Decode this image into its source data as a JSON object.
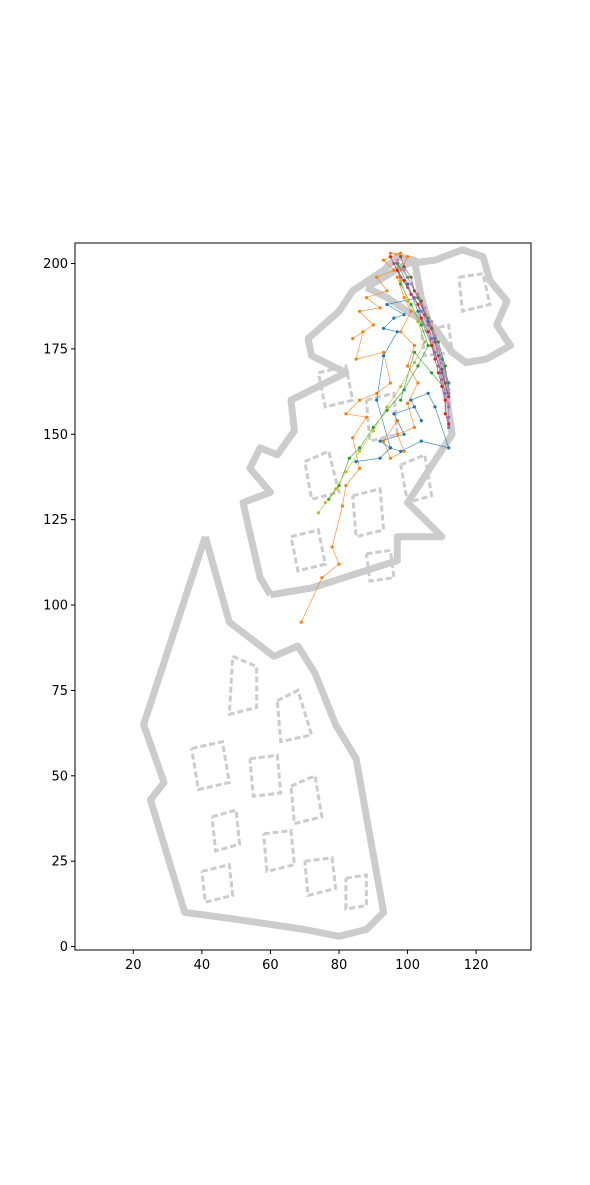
{
  "chart_data": {
    "type": "scatter",
    "title": "",
    "xlabel": "",
    "ylabel": "",
    "xlim": [
      3,
      136
    ],
    "ylim": [
      -1,
      206
    ],
    "grid": false,
    "legend": "none",
    "x_ticks": [
      20,
      40,
      60,
      80,
      100,
      120
    ],
    "x_tick_labels": [
      "20",
      "40",
      "60",
      "80",
      "100",
      "120"
    ],
    "y_ticks": [
      0,
      25,
      50,
      75,
      100,
      125,
      150,
      175,
      200
    ],
    "y_tick_labels": [
      "0",
      "25",
      "50",
      "75",
      "100",
      "125",
      "150",
      "175",
      "200"
    ],
    "map_color": "#cccccc",
    "map_walls": [
      [
        [
          41,
          120
        ],
        [
          23,
          65
        ],
        [
          29,
          48
        ],
        [
          25,
          43
        ],
        [
          35,
          10
        ],
        [
          50,
          8
        ],
        [
          70,
          5
        ],
        [
          80,
          3
        ],
        [
          88,
          5
        ],
        [
          93,
          10
        ],
        [
          85,
          55
        ],
        [
          79,
          65
        ],
        [
          73,
          80
        ],
        [
          68,
          88
        ],
        [
          61,
          85
        ],
        [
          48,
          95
        ],
        [
          41,
          120
        ]
      ],
      [
        [
          60,
          103
        ],
        [
          57,
          108
        ],
        [
          52,
          130
        ],
        [
          60,
          133
        ],
        [
          54,
          140
        ],
        [
          57,
          146
        ],
        [
          62,
          144
        ],
        [
          67,
          151
        ],
        [
          66,
          160
        ],
        [
          76,
          165
        ],
        [
          82,
          168
        ],
        [
          72,
          173
        ],
        [
          71,
          178
        ],
        [
          80,
          186
        ],
        [
          84,
          192
        ],
        [
          93,
          198
        ],
        [
          97,
          202
        ],
        [
          102,
          201
        ],
        [
          104,
          190
        ],
        [
          110,
          170
        ],
        [
          113,
          150
        ],
        [
          100,
          130
        ],
        [
          110,
          120
        ],
        [
          97,
          120
        ],
        [
          97,
          113
        ],
        [
          72,
          105
        ],
        [
          60,
          103
        ]
      ],
      [
        [
          88,
          193
        ],
        [
          100,
          200
        ],
        [
          108,
          201
        ],
        [
          116,
          204
        ],
        [
          122,
          202
        ],
        [
          124,
          195
        ],
        [
          129,
          189
        ],
        [
          126,
          182
        ],
        [
          130,
          176
        ],
        [
          123,
          172
        ],
        [
          117,
          171
        ],
        [
          113,
          174
        ],
        [
          108,
          181
        ],
        [
          100,
          186
        ],
        [
          94,
          190
        ],
        [
          88,
          193
        ]
      ]
    ],
    "map_interior": [
      [
        [
          49,
          85
        ],
        [
          56,
          82
        ],
        [
          56,
          70
        ],
        [
          48,
          68
        ],
        [
          49,
          85
        ]
      ],
      [
        [
          62,
          72
        ],
        [
          68,
          75
        ],
        [
          72,
          62
        ],
        [
          63,
          60
        ],
        [
          62,
          72
        ]
      ],
      [
        [
          37,
          58
        ],
        [
          46,
          60
        ],
        [
          48,
          48
        ],
        [
          39,
          46
        ],
        [
          37,
          58
        ]
      ],
      [
        [
          54,
          55
        ],
        [
          62,
          56
        ],
        [
          63,
          45
        ],
        [
          55,
          44
        ],
        [
          54,
          55
        ]
      ],
      [
        [
          66,
          47
        ],
        [
          73,
          50
        ],
        [
          75,
          38
        ],
        [
          67,
          36
        ],
        [
          66,
          47
        ]
      ],
      [
        [
          43,
          38
        ],
        [
          50,
          40
        ],
        [
          51,
          30
        ],
        [
          44,
          28
        ],
        [
          43,
          38
        ]
      ],
      [
        [
          58,
          33
        ],
        [
          66,
          34
        ],
        [
          67,
          24
        ],
        [
          59,
          22
        ],
        [
          58,
          33
        ]
      ],
      [
        [
          70,
          25
        ],
        [
          78,
          26
        ],
        [
          79,
          17
        ],
        [
          71,
          15
        ],
        [
          70,
          25
        ]
      ],
      [
        [
          82,
          20
        ],
        [
          88,
          21
        ],
        [
          88,
          12
        ],
        [
          82,
          11
        ],
        [
          82,
          20
        ]
      ],
      [
        [
          40,
          22
        ],
        [
          48,
          24
        ],
        [
          49,
          15
        ],
        [
          41,
          13
        ],
        [
          40,
          22
        ]
      ],
      [
        [
          70,
          142
        ],
        [
          77,
          145
        ],
        [
          80,
          133
        ],
        [
          72,
          131
        ],
        [
          70,
          142
        ]
      ],
      [
        [
          84,
          132
        ],
        [
          92,
          134
        ],
        [
          93,
          122
        ],
        [
          85,
          120
        ],
        [
          84,
          132
        ]
      ],
      [
        [
          98,
          141
        ],
        [
          105,
          144
        ],
        [
          107,
          132
        ],
        [
          100,
          130
        ],
        [
          98,
          141
        ]
      ],
      [
        [
          74,
          168
        ],
        [
          82,
          170
        ],
        [
          84,
          160
        ],
        [
          76,
          158
        ],
        [
          74,
          168
        ]
      ],
      [
        [
          88,
          160
        ],
        [
          96,
          162
        ],
        [
          97,
          150
        ],
        [
          89,
          148
        ],
        [
          88,
          160
        ]
      ],
      [
        [
          104,
          180
        ],
        [
          112,
          182
        ],
        [
          113,
          174
        ],
        [
          105,
          173
        ],
        [
          104,
          180
        ]
      ],
      [
        [
          115,
          196
        ],
        [
          122,
          197
        ],
        [
          124,
          188
        ],
        [
          116,
          186
        ],
        [
          115,
          196
        ]
      ],
      [
        [
          66,
          120
        ],
        [
          74,
          122
        ],
        [
          76,
          112
        ],
        [
          68,
          110
        ],
        [
          66,
          120
        ]
      ],
      [
        [
          88,
          115
        ],
        [
          95,
          116
        ],
        [
          96,
          108
        ],
        [
          89,
          107
        ],
        [
          88,
          115
        ]
      ]
    ],
    "series": [
      {
        "color": "#ff7f0e",
        "points": [
          [
            69,
            95
          ],
          [
            75,
            108
          ],
          [
            80,
            112
          ],
          [
            78,
            117
          ],
          [
            81,
            129
          ],
          [
            82,
            135
          ],
          [
            86,
            140
          ],
          [
            84,
            149
          ],
          [
            88,
            155
          ],
          [
            82,
            156
          ],
          [
            86,
            160
          ],
          [
            91,
            162
          ],
          [
            95,
            165
          ],
          [
            93,
            174
          ],
          [
            85,
            172
          ],
          [
            87,
            180
          ],
          [
            84,
            178
          ],
          [
            90,
            182
          ],
          [
            86,
            186
          ],
          [
            92,
            187
          ],
          [
            88,
            190
          ],
          [
            94,
            192
          ],
          [
            91,
            196
          ],
          [
            96,
            198
          ],
          [
            93,
            201
          ],
          [
            98,
            203
          ],
          [
            95,
            203
          ],
          [
            100,
            202
          ],
          [
            97,
            196
          ],
          [
            99,
            190
          ],
          [
            101,
            186
          ],
          [
            98,
            180
          ],
          [
            102,
            176
          ],
          [
            100,
            170
          ],
          [
            103,
            165
          ],
          [
            100,
            159
          ],
          [
            102,
            152
          ],
          [
            97,
            150
          ],
          [
            99,
            145
          ],
          [
            95,
            143
          ],
          [
            93,
            148
          ],
          [
            97,
            154
          ]
        ]
      },
      {
        "color": "#1f77b4",
        "points": [
          [
            85,
            142
          ],
          [
            92,
            143
          ],
          [
            95,
            146
          ],
          [
            92,
            148
          ],
          [
            99,
            150
          ],
          [
            96,
            156
          ],
          [
            102,
            158
          ],
          [
            104,
            154
          ],
          [
            101,
            160
          ],
          [
            106,
            162
          ],
          [
            108,
            158
          ],
          [
            112,
            146
          ],
          [
            104,
            148
          ],
          [
            98,
            145
          ],
          [
            95,
            146
          ],
          [
            91,
            160
          ],
          [
            93,
            173
          ],
          [
            97,
            180
          ],
          [
            93,
            181
          ],
          [
            96,
            184
          ],
          [
            99,
            185
          ],
          [
            94,
            188
          ],
          [
            103,
            190
          ],
          [
            106,
            183
          ],
          [
            108,
            178
          ],
          [
            110,
            172
          ],
          [
            112,
            165
          ],
          [
            112,
            161
          ],
          [
            110,
            168
          ],
          [
            107,
            176
          ],
          [
            103,
            186
          ],
          [
            100,
            194
          ],
          [
            97,
            200
          ]
        ]
      },
      {
        "color": "#2ca02c",
        "points": [
          [
            77,
            131
          ],
          [
            80,
            135
          ],
          [
            83,
            143
          ],
          [
            86,
            146
          ],
          [
            90,
            152
          ],
          [
            94,
            157
          ],
          [
            99,
            163
          ],
          [
            103,
            170
          ],
          [
            106,
            176
          ],
          [
            104,
            182
          ],
          [
            101,
            188
          ],
          [
            98,
            194
          ],
          [
            97,
            200
          ],
          [
            100,
            196
          ],
          [
            103,
            190
          ],
          [
            106,
            184
          ],
          [
            109,
            177
          ],
          [
            111,
            170
          ],
          [
            112,
            162
          ],
          [
            107,
            168
          ],
          [
            102,
            174
          ],
          [
            98,
            160
          ]
        ]
      },
      {
        "color": "#9467bd",
        "points": [
          [
            96,
            200
          ],
          [
            98,
            196
          ],
          [
            100,
            193
          ],
          [
            102,
            190
          ],
          [
            104,
            186
          ],
          [
            106,
            182
          ],
          [
            107,
            178
          ],
          [
            108,
            174
          ],
          [
            109,
            170
          ],
          [
            110,
            166
          ],
          [
            111,
            162
          ],
          [
            112,
            158
          ],
          [
            112,
            155
          ],
          [
            112,
            152
          ]
        ]
      },
      {
        "color": "#e377c2",
        "points": [
          [
            97,
            201
          ],
          [
            99,
            198
          ],
          [
            101,
            194
          ],
          [
            103,
            191
          ],
          [
            105,
            187
          ],
          [
            107,
            183
          ],
          [
            108,
            179
          ],
          [
            109,
            175
          ],
          [
            110,
            171
          ],
          [
            111,
            167
          ],
          [
            112,
            163
          ],
          [
            112,
            159
          ]
        ]
      },
      {
        "color": "#d62728",
        "points": [
          [
            95,
            202
          ],
          [
            97,
            198
          ],
          [
            99,
            195
          ],
          [
            101,
            191
          ],
          [
            103,
            188
          ],
          [
            104,
            184
          ],
          [
            106,
            180
          ],
          [
            107,
            176
          ],
          [
            108,
            172
          ],
          [
            109,
            168
          ],
          [
            110,
            164
          ],
          [
            111,
            160
          ],
          [
            111,
            156
          ],
          [
            112,
            153
          ]
        ]
      },
      {
        "color": "#8c564b",
        "points": [
          [
            98,
            202
          ],
          [
            99,
            199
          ],
          [
            101,
            196
          ],
          [
            102,
            192
          ],
          [
            104,
            189
          ],
          [
            105,
            185
          ],
          [
            107,
            181
          ],
          [
            108,
            177
          ],
          [
            109,
            173
          ],
          [
            110,
            169
          ],
          [
            111,
            165
          ],
          [
            112,
            161
          ]
        ]
      },
      {
        "color": "#bcbd22",
        "points": [
          [
            74,
            127
          ],
          [
            76,
            130
          ],
          [
            79,
            134
          ],
          [
            82,
            139
          ],
          [
            86,
            145
          ],
          [
            90,
            151
          ],
          [
            94,
            158
          ],
          [
            98,
            164
          ],
          [
            102,
            171
          ],
          [
            105,
            177
          ],
          [
            103,
            183
          ],
          [
            100,
            189
          ],
          [
            98,
            195
          ]
        ]
      }
    ]
  }
}
